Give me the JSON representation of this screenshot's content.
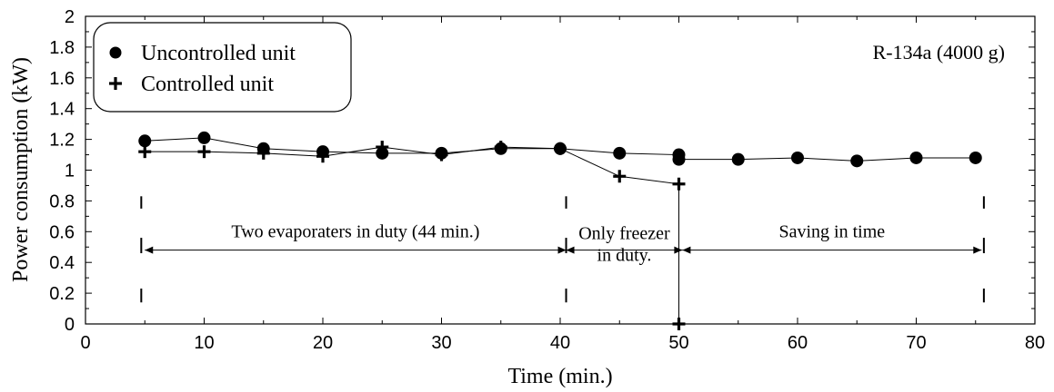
{
  "chart_data": {
    "type": "line",
    "xlabel": "Time (min.)",
    "ylabel": "Power consumption (kW)",
    "xlim": [
      0,
      80
    ],
    "ylim": [
      0,
      2
    ],
    "xticks": [
      0,
      10,
      20,
      30,
      40,
      50,
      60,
      70,
      80
    ],
    "yticks": [
      0,
      0.2,
      0.4,
      0.6,
      0.8,
      1,
      1.2,
      1.4,
      1.6,
      1.8,
      2
    ],
    "grid": false,
    "legend_position": "top-left",
    "note": "R-134a (4000 g)",
    "series": [
      {
        "name": "Uncontrolled unit",
        "marker": "circle",
        "x": [
          5,
          10,
          15,
          20,
          25,
          30,
          35,
          40,
          45,
          50,
          50,
          55,
          60,
          65,
          70,
          75
        ],
        "y": [
          1.19,
          1.21,
          1.14,
          1.12,
          1.11,
          1.11,
          1.14,
          1.14,
          1.11,
          1.1,
          1.07,
          1.07,
          1.08,
          1.06,
          1.08,
          1.08
        ]
      },
      {
        "name": "Controlled unit",
        "marker": "plus",
        "x": [
          5,
          10,
          15,
          20,
          25,
          30,
          35,
          40,
          45,
          50,
          50
        ],
        "y": [
          1.12,
          1.12,
          1.11,
          1.09,
          1.15,
          1.1,
          1.15,
          1.14,
          0.96,
          0.91,
          0
        ]
      }
    ],
    "annotations": [
      {
        "text": "Two evaporaters in duty (44 min.)",
        "x_start": 5,
        "x_end": 40.5,
        "y": 0.48
      },
      {
        "lines": [
          "Only freezer",
          "in duty."
        ],
        "x_start": 40.5,
        "x_end": 50.3,
        "y": 0.48
      },
      {
        "text": "Saving in time",
        "x_start": 50.3,
        "x_end": 75.5,
        "y": 0.48
      }
    ],
    "dashed_markers_x": [
      4.7,
      40.5,
      75.7
    ]
  }
}
